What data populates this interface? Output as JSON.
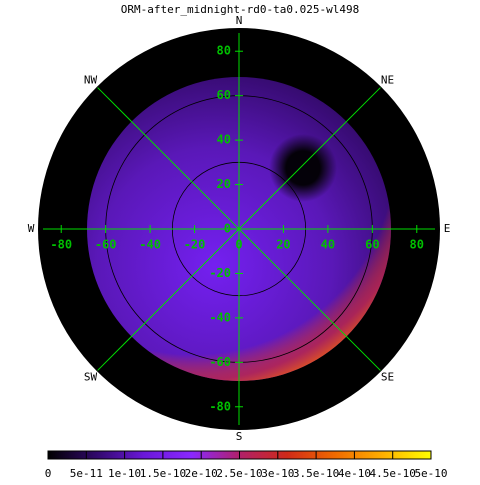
{
  "chart_data": {
    "type": "polar-heatmap",
    "title": "ORM-after_midnight-rd0-ta0.025-wl498",
    "directions": [
      "N",
      "NE",
      "E",
      "SE",
      "S",
      "SW",
      "W",
      "NW"
    ],
    "xlim": [
      -90,
      90
    ],
    "ylim": [
      -90,
      90
    ],
    "xticks": [
      -80,
      -60,
      -40,
      -20,
      0,
      20,
      40,
      60,
      80
    ],
    "yticks": [
      -80,
      -60,
      -40,
      -20,
      0,
      20,
      40,
      60,
      80
    ],
    "circles": [
      30,
      60
    ],
    "grid_color": "#00dd00",
    "colormap": [
      "#000000",
      "#30086a",
      "#6a18d8",
      "#8a28ff",
      "#b0206a",
      "#d02a18",
      "#f06a00",
      "#ffb000",
      "#ffff00"
    ],
    "clim": [
      0,
      5e-10
    ],
    "cticks": [
      0,
      5e-11,
      1e-10,
      1.5e-10,
      2e-10,
      2.5e-10,
      3e-10,
      3.5e-10,
      4e-10,
      4.5e-10,
      5e-10
    ]
  }
}
